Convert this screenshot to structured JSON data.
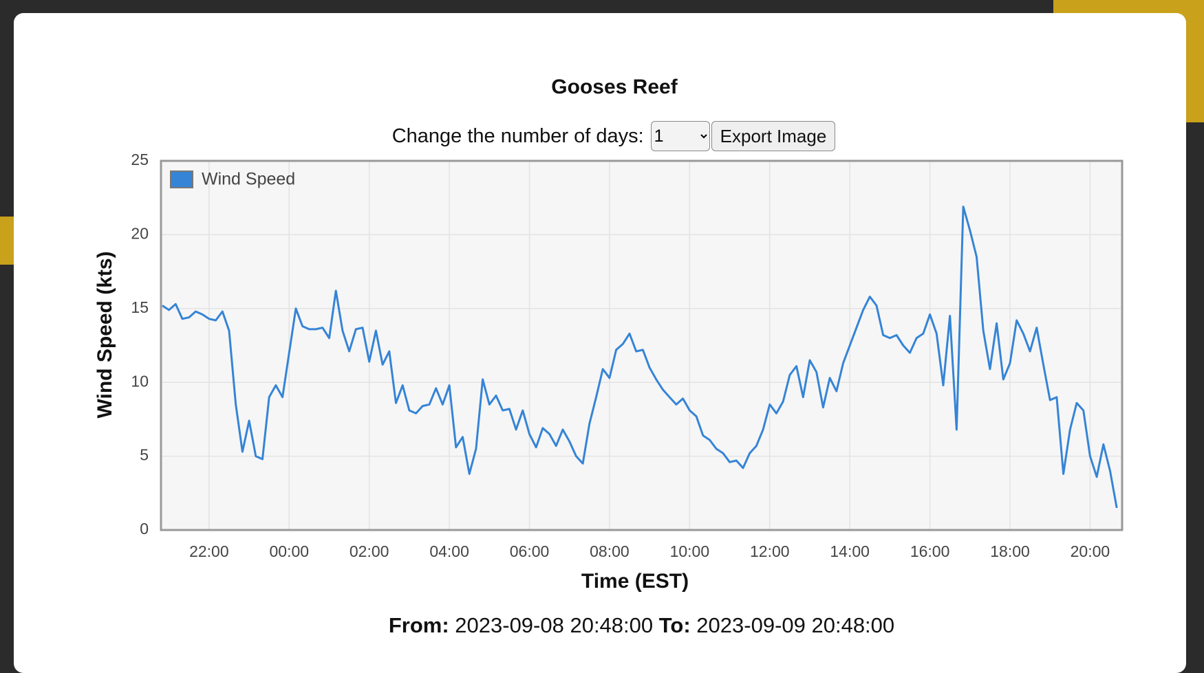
{
  "chart_data": {
    "type": "line",
    "title": "Gooses Reef",
    "xlabel": "Time (EST)",
    "ylabel": "Wind Speed (kts)",
    "x": [
      "20:50",
      "21:00",
      "21:10",
      "21:20",
      "21:30",
      "21:40",
      "21:50",
      "22:00",
      "22:10",
      "22:20",
      "22:30",
      "22:40",
      "22:50",
      "23:00",
      "23:10",
      "23:20",
      "23:30",
      "23:40",
      "23:50",
      "00:00",
      "00:10",
      "00:20",
      "00:30",
      "00:40",
      "00:50",
      "01:00",
      "01:10",
      "01:20",
      "01:30",
      "01:40",
      "01:50",
      "02:00",
      "02:10",
      "02:20",
      "02:30",
      "02:40",
      "02:50",
      "03:00",
      "03:10",
      "03:20",
      "03:30",
      "03:40",
      "03:50",
      "04:00",
      "04:10",
      "04:20",
      "04:30",
      "04:40",
      "04:50",
      "05:00",
      "05:10",
      "05:20",
      "05:30",
      "05:40",
      "05:50",
      "06:00",
      "06:10",
      "06:20",
      "06:30",
      "06:40",
      "06:50",
      "07:00",
      "07:10",
      "07:20",
      "07:30",
      "07:40",
      "07:50",
      "08:00",
      "08:10",
      "08:20",
      "08:30",
      "08:40",
      "08:50",
      "09:00",
      "09:10",
      "09:20",
      "09:30",
      "09:40",
      "09:50",
      "10:00",
      "10:10",
      "10:20",
      "10:30",
      "10:40",
      "10:50",
      "11:00",
      "11:10",
      "11:20",
      "11:30",
      "11:40",
      "11:50",
      "12:00",
      "12:10",
      "12:20",
      "12:30",
      "12:40",
      "12:50",
      "13:00",
      "13:10",
      "13:20",
      "13:30",
      "13:40",
      "13:50",
      "14:00",
      "14:10",
      "14:20",
      "14:30",
      "14:40",
      "14:50",
      "15:00",
      "15:10",
      "15:20",
      "15:30",
      "15:40",
      "15:50",
      "16:00",
      "16:10",
      "16:20",
      "16:30",
      "16:40",
      "16:50",
      "17:00",
      "17:10",
      "17:20",
      "17:30",
      "17:40",
      "17:50",
      "18:00",
      "18:10",
      "18:20",
      "18:30",
      "18:40",
      "18:50",
      "19:00",
      "19:10",
      "19:20",
      "19:30",
      "19:40",
      "19:50",
      "20:00",
      "20:10",
      "20:20",
      "20:30",
      "20:40"
    ],
    "series": [
      {
        "name": "Wind Speed",
        "color": "#3584d6",
        "values": [
          15.2,
          14.9,
          15.3,
          14.3,
          14.4,
          14.8,
          14.6,
          14.3,
          14.2,
          14.8,
          13.5,
          8.5,
          5.3,
          7.4,
          5.0,
          4.8,
          9.0,
          9.8,
          9.0,
          12.0,
          15.0,
          13.8,
          13.6,
          13.6,
          13.7,
          13.0,
          16.2,
          13.5,
          12.1,
          13.6,
          13.7,
          11.4,
          13.5,
          11.2,
          12.1,
          8.6,
          9.8,
          8.1,
          7.9,
          8.4,
          8.5,
          9.6,
          8.5,
          9.8,
          5.6,
          6.3,
          3.8,
          5.5,
          10.2,
          8.5,
          9.1,
          8.1,
          8.2,
          6.8,
          8.1,
          6.5,
          5.6,
          6.9,
          6.5,
          5.7,
          6.8,
          6.0,
          5.0,
          4.5,
          7.2,
          9.0,
          10.9,
          10.3,
          12.2,
          12.6,
          13.3,
          12.1,
          12.2,
          11.0,
          10.2,
          9.5,
          9.0,
          8.5,
          8.9,
          8.1,
          7.7,
          6.4,
          6.1,
          5.5,
          5.2,
          4.6,
          4.7,
          4.2,
          5.2,
          5.7,
          6.8,
          8.5,
          7.9,
          8.7,
          10.5,
          11.1,
          9.0,
          11.5,
          10.7,
          8.3,
          10.3,
          9.4,
          11.3,
          12.5,
          13.7,
          14.9,
          15.8,
          15.2,
          13.2,
          13.0,
          13.2,
          12.5,
          12.0,
          13.0,
          13.3,
          14.6,
          13.3,
          9.8,
          14.5,
          6.8,
          21.9,
          20.3,
          18.5,
          13.5,
          10.9,
          14.0,
          10.2,
          11.3,
          14.2,
          13.3,
          12.1,
          13.7,
          11.2,
          8.8,
          9.0,
          3.8,
          6.8,
          8.6,
          8.1,
          5.0,
          3.6,
          5.8,
          4.0,
          1.5
        ]
      }
    ],
    "xlim": [
      "20:48",
      "20:48"
    ],
    "xticks": [
      "22:00",
      "00:00",
      "02:00",
      "04:00",
      "06:00",
      "08:00",
      "10:00",
      "12:00",
      "14:00",
      "16:00",
      "18:00",
      "20:00"
    ],
    "ylim": [
      0,
      25
    ],
    "yticks": [
      0,
      5,
      10,
      15,
      20,
      25
    ],
    "grid": true,
    "legend": "upper left"
  },
  "controls": {
    "days_label": "Change the number of days:",
    "days_value": "1",
    "export_button": "Export Image"
  },
  "range": {
    "from_label": "From:",
    "from": "2023-09-08 20:48:00",
    "to_label": "To:",
    "to": "2023-09-09 20:48:00"
  }
}
